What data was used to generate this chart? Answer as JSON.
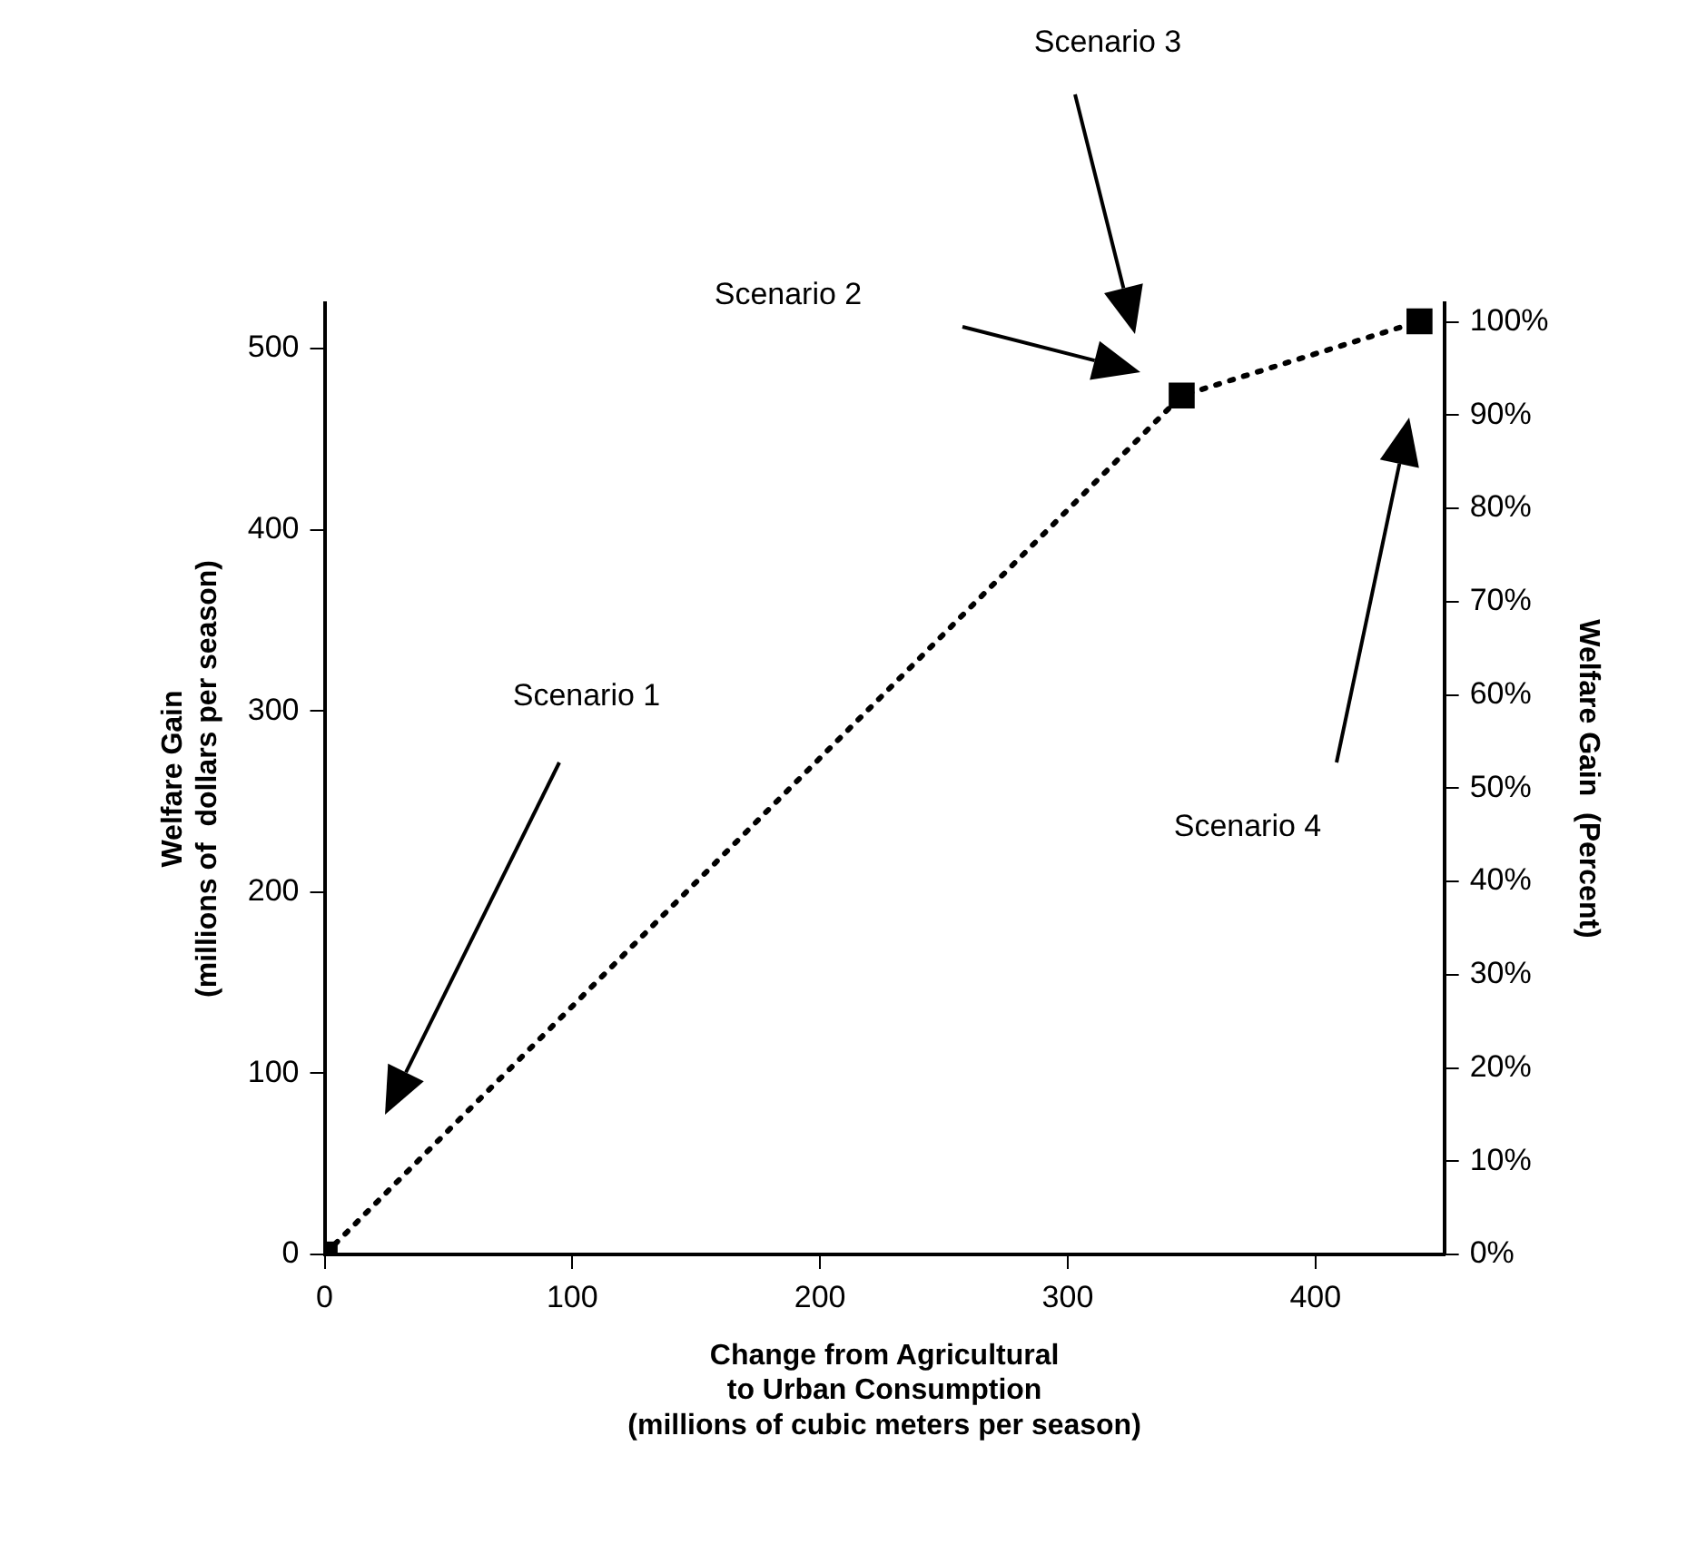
{
  "chart_data": {
    "type": "line",
    "xlabel": "Change from Agricultural\nto Urban Consumption\n(millions of cubic meters per season)",
    "ylabel": "Welfare Gain\n(millions of  dollars per season)",
    "y2label": "Welfare Gain  (Percent)",
    "x": [
      0,
      346,
      442
    ],
    "series": [
      {
        "color": "#000000",
        "values": [
          0,
          474,
          515
        ]
      }
    ],
    "xlim": [
      0,
      452
    ],
    "xticks": [
      0,
      100,
      200,
      300,
      400
    ],
    "ylim": [
      0,
      525
    ],
    "yticks": [
      0,
      100,
      200,
      300,
      400,
      500
    ],
    "y2lim": [
      0,
      102
    ],
    "y2ticks": [
      {
        "value": 0,
        "label": "0%"
      },
      {
        "value": 10,
        "label": "10%"
      },
      {
        "value": 20,
        "label": "20%"
      },
      {
        "value": 30,
        "label": "30%"
      },
      {
        "value": 40,
        "label": "40%"
      },
      {
        "value": 50,
        "label": "50%"
      },
      {
        "value": 60,
        "label": "60%"
      },
      {
        "value": 70,
        "label": "70%"
      },
      {
        "value": 80,
        "label": "80%"
      },
      {
        "value": 90,
        "label": "90%"
      },
      {
        "value": 100,
        "label": "100%"
      }
    ],
    "annotations": [
      "Scenario 1",
      "Scenario 2",
      "Scenario 3",
      "Scenario 4"
    ],
    "marker": "square",
    "line_style": "dotted",
    "grid": false,
    "legend": false
  }
}
